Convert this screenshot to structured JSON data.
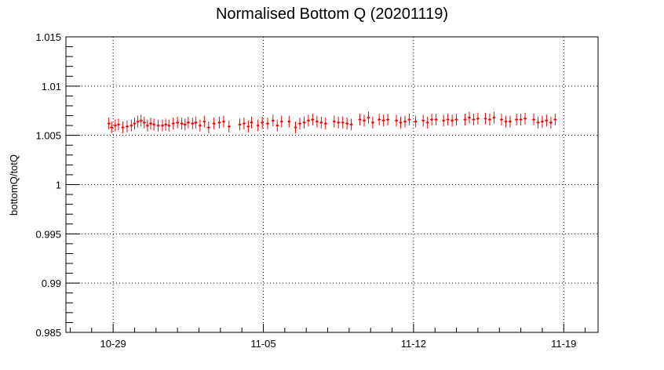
{
  "chart_data": {
    "type": "scatter",
    "title": "Normalised Bottom Q (20201119)",
    "xlabel": "",
    "ylabel": "bottomQ/totQ",
    "x_tick_labels": [
      "10-29",
      "11-05",
      "11-12",
      "11-19"
    ],
    "x_tick_values": [
      0,
      7,
      14,
      21
    ],
    "xlim": [
      -2.2,
      22.6
    ],
    "ylim": [
      0.985,
      1.015
    ],
    "y_tick_labels": [
      "0.985",
      "0.99",
      "0.995",
      "1",
      "1.005",
      "1.01",
      "1.015"
    ],
    "y_tick_values": [
      0.985,
      0.99,
      0.995,
      1.0,
      1.005,
      1.01,
      1.015
    ],
    "grid": true,
    "marker_color": "#ff0000",
    "series": [
      {
        "error": 0.0006,
        "x": [
          -0.2,
          -0.07,
          0.1,
          0.25,
          0.45,
          0.65,
          0.85,
          1.0,
          1.15,
          1.3,
          1.45,
          1.6,
          1.75,
          1.9,
          2.1,
          2.3,
          2.45,
          2.6,
          2.8,
          3.0,
          3.2,
          3.35,
          3.5,
          3.7,
          3.85,
          4.05,
          4.25,
          4.45,
          4.7,
          4.95,
          5.15,
          5.4,
          5.9,
          6.1,
          6.3,
          6.45,
          6.75,
          6.95,
          7.2,
          7.45,
          7.65,
          7.85,
          8.2,
          8.5,
          8.7,
          8.9,
          9.1,
          9.3,
          9.5,
          9.7,
          9.9,
          10.3,
          10.5,
          10.7,
          10.9,
          11.1,
          11.5,
          11.7,
          11.9,
          12.1,
          12.4,
          12.6,
          12.8,
          13.2,
          13.4,
          13.6,
          13.8,
          14.1,
          14.45,
          14.65,
          14.85,
          15.05,
          15.4,
          15.6,
          15.8,
          16.0,
          16.4,
          16.6,
          16.8,
          17.0,
          17.35,
          17.55,
          17.75,
          18.1,
          18.3,
          18.5,
          18.8,
          19.0,
          19.2,
          19.6,
          19.8,
          20.0,
          20.2,
          20.4,
          20.6
        ],
        "y": [
          1.0062,
          1.0058,
          1.006,
          1.0061,
          1.0058,
          1.0059,
          1.006,
          1.0062,
          1.0064,
          1.0065,
          1.0063,
          1.006,
          1.0062,
          1.0061,
          1.006,
          1.006,
          1.0061,
          1.006,
          1.0062,
          1.0063,
          1.0062,
          1.0061,
          1.0063,
          1.0062,
          1.0063,
          1.006,
          1.0064,
          1.0058,
          1.0062,
          1.0063,
          1.0064,
          1.0059,
          1.0061,
          1.0062,
          1.0059,
          1.0063,
          1.006,
          1.0063,
          1.0062,
          1.0065,
          1.006,
          1.0064,
          1.0064,
          1.0058,
          1.0062,
          1.0063,
          1.0065,
          1.0066,
          1.0064,
          1.0063,
          1.0062,
          1.0064,
          1.0063,
          1.0063,
          1.0062,
          1.0061,
          1.0066,
          1.0065,
          1.0068,
          1.0063,
          1.0066,
          1.0065,
          1.0066,
          1.0065,
          1.0063,
          1.0064,
          1.0066,
          1.0064,
          1.0065,
          1.0063,
          1.0066,
          1.0066,
          1.0065,
          1.0066,
          1.0065,
          1.0066,
          1.0066,
          1.0068,
          1.0066,
          1.0067,
          1.0067,
          1.0066,
          1.0068,
          1.0066,
          1.0064,
          1.0064,
          1.0066,
          1.0066,
          1.0067,
          1.0066,
          1.0063,
          1.0064,
          1.0065,
          1.0063,
          1.0066
        ]
      }
    ]
  }
}
